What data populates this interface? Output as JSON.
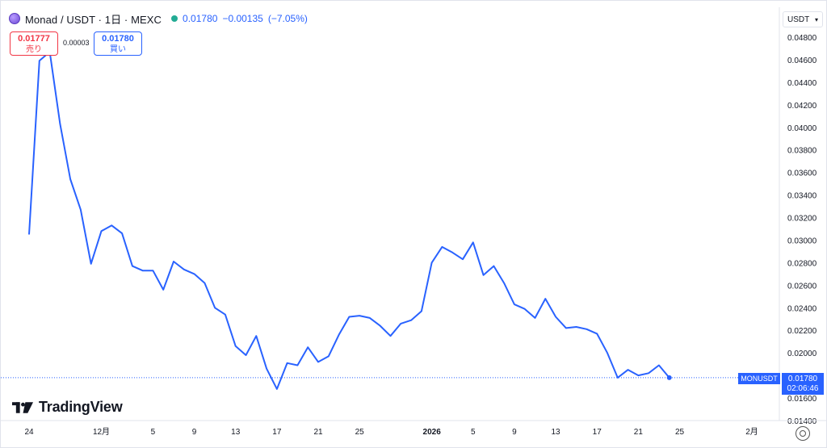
{
  "header": {
    "title": "Monad / USDT · 1日 · MEXC",
    "value": "0.01780",
    "change": "−0.00135",
    "change_pct": "(−7.05%)"
  },
  "trade": {
    "sell_price": "0.01777",
    "sell_label": "売り",
    "spread": "0.00003",
    "buy_price": "0.01780",
    "buy_label": "買い"
  },
  "currency": {
    "selected": "USDT"
  },
  "price_label": {
    "symbol": "MONUSDT",
    "value": "0.01780",
    "countdown": "02:06:46"
  },
  "logo": {
    "text": "TradingView"
  },
  "colors": {
    "line": "#2962ff",
    "sell": "#f23645",
    "buy": "#2962ff",
    "status": "#22ab94"
  },
  "icons": {
    "symbol": "monad-logo-icon",
    "settings": "gear-icon"
  },
  "chart_data": {
    "type": "line",
    "title": "Monad / USDT · 1日 · MEXC",
    "xlabel": "",
    "ylabel": "",
    "ylim": [
      0.0138,
      0.0485
    ],
    "y_ticks": [
      "0.04800",
      "0.04600",
      "0.04400",
      "0.04200",
      "0.04000",
      "0.03800",
      "0.03600",
      "0.03400",
      "0.03200",
      "0.03000",
      "0.02800",
      "0.02600",
      "0.02400",
      "0.02200",
      "0.02000",
      "0.01800",
      "0.01600",
      "0.01400"
    ],
    "x_ticks": [
      {
        "label": "24",
        "index": 0
      },
      {
        "label": "12月",
        "index": 7
      },
      {
        "label": "5",
        "index": 12
      },
      {
        "label": "9",
        "index": 16
      },
      {
        "label": "13",
        "index": 20
      },
      {
        "label": "17",
        "index": 24
      },
      {
        "label": "21",
        "index": 28
      },
      {
        "label": "25",
        "index": 32
      },
      {
        "label": "2026",
        "index": 39,
        "bold": true
      },
      {
        "label": "5",
        "index": 43
      },
      {
        "label": "9",
        "index": 47
      },
      {
        "label": "13",
        "index": 51
      },
      {
        "label": "17",
        "index": 55
      },
      {
        "label": "21",
        "index": 59
      },
      {
        "label": "25",
        "index": 63
      },
      {
        "label": "2月",
        "index": 70
      }
    ],
    "x_count": 71,
    "grid": false,
    "series": [
      {
        "values": [
          0.0305,
          0.0459,
          0.0467,
          0.0403,
          0.0354,
          0.0327,
          0.0279,
          0.0308,
          0.0313,
          0.0306,
          0.0277,
          0.0273,
          0.0273,
          0.0256,
          0.0281,
          0.0274,
          0.027,
          0.0262,
          0.024,
          0.0234,
          0.0206,
          0.0198,
          0.0215,
          0.0186,
          0.0168,
          0.0191,
          0.0189,
          0.0205,
          0.0192,
          0.0197,
          0.0216,
          0.0232,
          0.0233,
          0.0231,
          0.0224,
          0.0215,
          0.0226,
          0.0229,
          0.0237,
          0.028,
          0.0294,
          0.0289,
          0.0283,
          0.0298,
          0.0269,
          0.0277,
          0.0262,
          0.0243,
          0.0239,
          0.0231,
          0.0248,
          0.0232,
          0.0222,
          0.0223,
          0.0221,
          0.0217,
          0.02,
          0.0178,
          0.0185,
          0.018,
          0.0182,
          0.0189,
          0.0178
        ]
      }
    ]
  }
}
